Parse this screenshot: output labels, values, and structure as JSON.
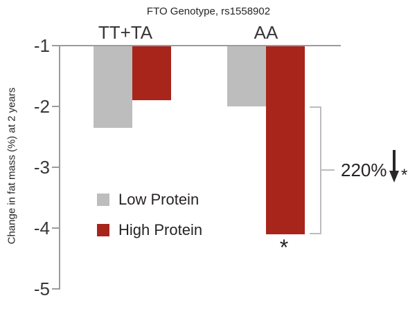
{
  "chart_data": {
    "type": "bar",
    "title": "FTO Genotype, rs1558902",
    "ylabel": "Change in fat mass (%) at 2 years",
    "categories": [
      "TT+TA",
      "AA"
    ],
    "series": [
      {
        "name": "Low Protein",
        "color": "#bdbdbd",
        "values": [
          -2.35,
          -2.0
        ]
      },
      {
        "name": "High Protein",
        "color": "#a8251b",
        "values": [
          -1.9,
          -4.1
        ]
      }
    ],
    "bar_baseline": -1,
    "ylim": [
      -5,
      -1
    ],
    "yticks": [
      "-1",
      "-2",
      "-3",
      "-4",
      "-5"
    ],
    "grid": false,
    "legend_position": "inside-left",
    "annotations": [
      {
        "type": "star",
        "text": "*",
        "target": "AA High Protein bar"
      },
      {
        "type": "bracket",
        "label": "220%",
        "arrow": "down",
        "star": "*",
        "range": [
          -2.0,
          -4.1
        ],
        "target": "AA group"
      }
    ]
  },
  "annotation": {
    "percent": "220%",
    "star": "*",
    "bar_star": "*"
  },
  "colors": {
    "low_protein": "#bdbdbd",
    "high_protein": "#a8251b",
    "axis": "#9b9b9b",
    "bracket": "#bcbcbc",
    "text": "#272324"
  }
}
